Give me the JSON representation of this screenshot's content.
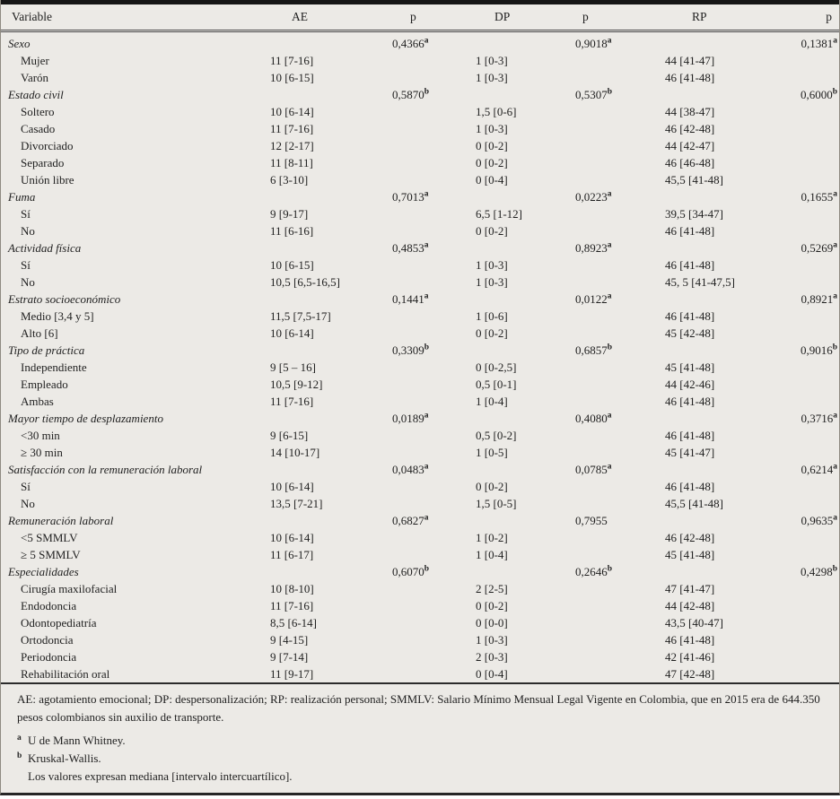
{
  "table": {
    "columns": [
      "Variable",
      "AE",
      "p",
      "DP",
      "p",
      "RP",
      "p"
    ],
    "rows": [
      {
        "label": "Sexo",
        "type": "category",
        "ae": "",
        "p1": "0,4366^a",
        "dp": "",
        "p2": "0,9018^a",
        "rp": "",
        "p3": "0,1381^a"
      },
      {
        "label": "Mujer",
        "type": "sub",
        "ae": "11 [7-16]",
        "p1": "",
        "dp": "1 [0-3]",
        "p2": "",
        "rp": "44 [41-47]",
        "p3": ""
      },
      {
        "label": "Varón",
        "type": "sub",
        "ae": "10 [6-15]",
        "p1": "",
        "dp": "1 [0-3]",
        "p2": "",
        "rp": "46 [41-48]",
        "p3": ""
      },
      {
        "label": "Estado civil",
        "type": "category",
        "ae": "",
        "p1": "0,5870^b",
        "dp": "",
        "p2": "0,5307^b",
        "rp": "",
        "p3": "0,6000^b"
      },
      {
        "label": "Soltero",
        "type": "sub",
        "ae": "10 [6-14]",
        "p1": "",
        "dp": "1,5 [0-6]",
        "p2": "",
        "rp": "44 [38-47]",
        "p3": ""
      },
      {
        "label": "Casado",
        "type": "sub",
        "ae": "11 [7-16]",
        "p1": "",
        "dp": "1 [0-3]",
        "p2": "",
        "rp": "46 [42-48]",
        "p3": ""
      },
      {
        "label": "Divorciado",
        "type": "sub",
        "ae": "12 [2-17]",
        "p1": "",
        "dp": "0 [0-2]",
        "p2": "",
        "rp": "44 [42-47]",
        "p3": ""
      },
      {
        "label": "Separado",
        "type": "sub",
        "ae": "11 [8-11]",
        "p1": "",
        "dp": "0 [0-2]",
        "p2": "",
        "rp": "46 [46-48]",
        "p3": ""
      },
      {
        "label": "Unión libre",
        "type": "sub",
        "ae": "6 [3-10]",
        "p1": "",
        "dp": "0 [0-4]",
        "p2": "",
        "rp": "45,5 [41-48]",
        "p3": ""
      },
      {
        "label": "Fuma",
        "type": "category",
        "ae": "",
        "p1": "0,7013^a",
        "dp": "",
        "p2": "0,0223^a",
        "rp": "",
        "p3": "0,1655^a"
      },
      {
        "label": "Sí",
        "type": "sub",
        "ae": "9 [9-17]",
        "p1": "",
        "dp": "6,5 [1-12]",
        "p2": "",
        "rp": "39,5 [34-47]",
        "p3": ""
      },
      {
        "label": "No",
        "type": "sub",
        "ae": "11 [6-16]",
        "p1": "",
        "dp": "0 [0-2]",
        "p2": "",
        "rp": "46 [41-48]",
        "p3": ""
      },
      {
        "label": "Actividad física",
        "type": "category",
        "ae": "",
        "p1": "0,4853^a",
        "dp": "",
        "p2": "0,8923^a",
        "rp": "",
        "p3": "0,5269^a"
      },
      {
        "label": "Sí",
        "type": "sub",
        "ae": "10 [6-15]",
        "p1": "",
        "dp": "1 [0-3]",
        "p2": "",
        "rp": "46 [41-48]",
        "p3": ""
      },
      {
        "label": "No",
        "type": "sub",
        "ae": "10,5 [6,5-16,5]",
        "p1": "",
        "dp": "1 [0-3]",
        "p2": "",
        "rp": "45, 5 [41-47,5]",
        "p3": ""
      },
      {
        "label": "Estrato socioeconómico",
        "type": "category",
        "ae": "",
        "p1": "0,1441^a",
        "dp": "",
        "p2": "0,0122^a",
        "rp": "",
        "p3": "0,8921^a"
      },
      {
        "label": "Medio [3,4 y 5]",
        "type": "sub",
        "ae": "11,5 [7,5-17]",
        "p1": "",
        "dp": "1 [0-6]",
        "p2": "",
        "rp": "46 [41-48]",
        "p3": ""
      },
      {
        "label": "Alto [6]",
        "type": "sub",
        "ae": "10 [6-14]",
        "p1": "",
        "dp": "0 [0-2]",
        "p2": "",
        "rp": "45 [42-48]",
        "p3": ""
      },
      {
        "label": "Tipo de práctica",
        "type": "category",
        "ae": "",
        "p1": "0,3309^b",
        "dp": "",
        "p2": "0,6857^b",
        "rp": "",
        "p3": "0,9016^b"
      },
      {
        "label": "Independiente",
        "type": "sub",
        "ae": "9 [5 – 16]",
        "p1": "",
        "dp": "0 [0-2,5]",
        "p2": "",
        "rp": "45 [41-48]",
        "p3": ""
      },
      {
        "label": "Empleado",
        "type": "sub",
        "ae": "10,5 [9-12]",
        "p1": "",
        "dp": "0,5 [0-1]",
        "p2": "",
        "rp": "44 [42-46]",
        "p3": ""
      },
      {
        "label": "Ambas",
        "type": "sub",
        "ae": "11 [7-16]",
        "p1": "",
        "dp": "1 [0-4]",
        "p2": "",
        "rp": "46 [41-48]",
        "p3": ""
      },
      {
        "label": "Mayor tiempo de desplazamiento",
        "type": "category",
        "ae": "",
        "p1": "0,0189^a",
        "dp": "",
        "p2": "0,4080^a",
        "rp": "",
        "p3": "0,3716^a"
      },
      {
        "label": "<30 min",
        "type": "sub",
        "ae": "9 [6-15]",
        "p1": "",
        "dp": "0,5 [0-2]",
        "p2": "",
        "rp": "46 [41-48]",
        "p3": ""
      },
      {
        "label": "≥ 30 min",
        "type": "sub",
        "ae": "14 [10-17]",
        "p1": "",
        "dp": "1 [0-5]",
        "p2": "",
        "rp": "45 [41-47]",
        "p3": ""
      },
      {
        "label": "Satisfacción con la remuneración laboral",
        "type": "category",
        "ae": "",
        "p1": "0,0483^a",
        "dp": "",
        "p2": "0,0785^a",
        "rp": "",
        "p3": "0,6214^a"
      },
      {
        "label": "Sí",
        "type": "sub",
        "ae": "10 [6-14]",
        "p1": "",
        "dp": "0 [0-2]",
        "p2": "",
        "rp": "46 [41-48]",
        "p3": ""
      },
      {
        "label": "No",
        "type": "sub",
        "ae": "13,5 [7-21]",
        "p1": "",
        "dp": "1,5 [0-5]",
        "p2": "",
        "rp": "45,5 [41-48]",
        "p3": ""
      },
      {
        "label": "Remuneración laboral",
        "type": "category",
        "ae": "",
        "p1": "0,6827^a",
        "dp": "",
        "p2": "0,7955",
        "rp": "",
        "p3": "0,9635^a"
      },
      {
        "label": "<5 SMMLV",
        "type": "sub",
        "ae": "10 [6-14]",
        "p1": "",
        "dp": "1 [0-2]",
        "p2": "",
        "rp": "46 [42-48]",
        "p3": ""
      },
      {
        "label": "≥ 5 SMMLV",
        "type": "sub",
        "ae": "11 [6-17]",
        "p1": "",
        "dp": "1 [0-4]",
        "p2": "",
        "rp": "45 [41-48]",
        "p3": ""
      },
      {
        "label": "Especialidades",
        "type": "category",
        "ae": "",
        "p1": "0,6070^b",
        "dp": "",
        "p2": "0,2646^b",
        "rp": "",
        "p3": "0,4298^b"
      },
      {
        "label": "Cirugía maxilofacial",
        "type": "sub",
        "ae": "10 [8-10]",
        "p1": "",
        "dp": "2 [2-5]",
        "p2": "",
        "rp": "47 [41-47]",
        "p3": ""
      },
      {
        "label": "Endodoncia",
        "type": "sub",
        "ae": "11 [7-16]",
        "p1": "",
        "dp": "0 [0-2]",
        "p2": "",
        "rp": "44 [42-48]",
        "p3": ""
      },
      {
        "label": "Odontopediatría",
        "type": "sub",
        "ae": "8,5 [6-14]",
        "p1": "",
        "dp": "0 [0-0]",
        "p2": "",
        "rp": "43,5 [40-47]",
        "p3": ""
      },
      {
        "label": "Ortodoncia",
        "type": "sub",
        "ae": "9 [4-15]",
        "p1": "",
        "dp": "1 [0-3]",
        "p2": "",
        "rp": "46 [41-48]",
        "p3": ""
      },
      {
        "label": "Periodoncia",
        "type": "sub",
        "ae": "9 [7-14]",
        "p1": "",
        "dp": "2 [0-3]",
        "p2": "",
        "rp": "42 [41-46]",
        "p3": ""
      },
      {
        "label": "Rehabilitación oral",
        "type": "sub",
        "ae": "11 [9-17]",
        "p1": "",
        "dp": "0 [0-4]",
        "p2": "",
        "rp": "47 [42-48]",
        "p3": ""
      }
    ]
  },
  "footnotes": {
    "abbreviations": "AE: agotamiento emocional; DP: despersonalización; RP: realización personal; SMMLV: Salario Mínimo Mensual Legal Vigente en Colombia, que en 2015 era de 644.350 pesos colombianos sin auxilio de transporte.",
    "notes": [
      {
        "marker": "a",
        "text": "U de Mann Whitney."
      },
      {
        "marker": "b",
        "text": "Kruskal-Wallis."
      },
      {
        "marker": "",
        "text": "Los valores expresan mediana [intervalo intercuartílico]."
      }
    ]
  }
}
